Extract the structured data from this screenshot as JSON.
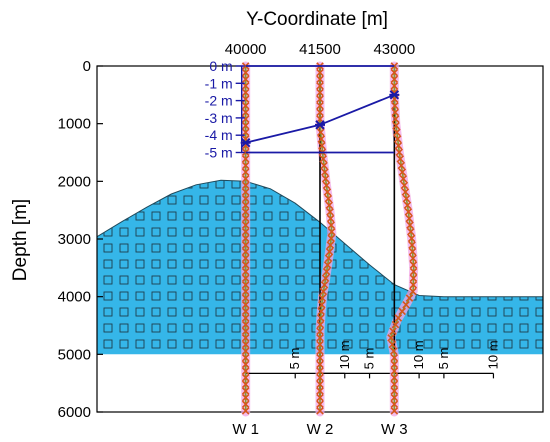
{
  "chart_data": {
    "type": "line",
    "title": "",
    "xlabel": "Y-Coordinate [m]",
    "ylabel": "Depth [m]",
    "xlim": [
      37000,
      46000
    ],
    "ylim": [
      0,
      6000
    ],
    "y_inverted": true,
    "x_axis_position": "top",
    "x_ticks": [
      40000,
      41500,
      43000
    ],
    "x_tick_labels": [
      "40000",
      "41500",
      "43000"
    ],
    "y_ticks": [
      0,
      1000,
      2000,
      3000,
      4000,
      5000,
      6000
    ],
    "y_tick_labels": [
      "0",
      "1000",
      "2000",
      "3000",
      "4000",
      "5000",
      "6000"
    ],
    "grid": false,
    "colors": {
      "formation_fill": "#35b6e8",
      "formation_grid": "#1e3d4d",
      "reference_line": "#1a1aa6",
      "well_line": "#000000",
      "marker": "#d6561c",
      "curve": "#8a9a30",
      "halo": "#f2a6e6"
    },
    "formation": {
      "name": "",
      "top_surface": {
        "y": [
          37000,
          37500,
          38000,
          38500,
          39000,
          39500,
          40000,
          40500,
          41000,
          41500,
          42000,
          42500,
          43000,
          43500,
          44000,
          44500,
          45000,
          46000
        ],
        "depth": [
          2960,
          2700,
          2450,
          2220,
          2060,
          1980,
          2000,
          2130,
          2380,
          2710,
          3080,
          3450,
          3790,
          3980,
          4000,
          4000,
          4000,
          4000
        ]
      },
      "base_depth": 5000
    },
    "displacement_levels": {
      "labels": [
        "0 m",
        "-1 m",
        "-2 m",
        "-3 m",
        "-4 m",
        "-5 m"
      ],
      "values": [
        0,
        -1,
        -2,
        -3,
        -4,
        -5
      ]
    },
    "reference_lines": [
      {
        "name": "",
        "y": [
          40000,
          43000
        ],
        "depth": [
          0,
          0
        ]
      },
      {
        "name": "",
        "y": [
          40000,
          41500,
          43000
        ],
        "depth": [
          1330,
          1020,
          500
        ]
      },
      {
        "name": "",
        "y": [
          40000,
          43000
        ],
        "depth": [
          1500,
          1500
        ]
      }
    ],
    "wells": [
      {
        "name": "W 1",
        "y": 40000,
        "scale_labels": [
          "5 m",
          "10 m"
        ],
        "profile_depth": [
          0,
          500,
          1000,
          1500,
          2000,
          2500,
          3000,
          3500,
          4000,
          4500,
          5000,
          5500,
          6000
        ],
        "profile_shift": [
          0,
          0,
          0,
          0,
          0,
          0,
          0,
          0,
          0,
          0,
          0,
          0,
          0
        ]
      },
      {
        "name": "W 2",
        "y": 41500,
        "scale_labels": [
          "5 m",
          "10 m"
        ],
        "profile_depth": [
          0,
          500,
          1000,
          1500,
          2000,
          2500,
          2900,
          3300,
          3700,
          4000,
          4300,
          4600,
          5000,
          5500,
          6000
        ],
        "profile_shift": [
          0,
          0,
          0,
          50,
          120,
          200,
          240,
          180,
          110,
          50,
          20,
          0,
          0,
          0,
          0
        ]
      },
      {
        "name": "W 3",
        "y": 43000,
        "scale_labels": [
          "5 m",
          "10 m"
        ],
        "profile_depth": [
          0,
          500,
          1000,
          1500,
          2000,
          2500,
          3000,
          3500,
          3900,
          4150,
          4400,
          4700,
          5000,
          5500,
          6000
        ],
        "profile_shift": [
          0,
          0,
          30,
          100,
          190,
          280,
          350,
          390,
          380,
          230,
          60,
          -70,
          0,
          0,
          0
        ]
      }
    ]
  }
}
